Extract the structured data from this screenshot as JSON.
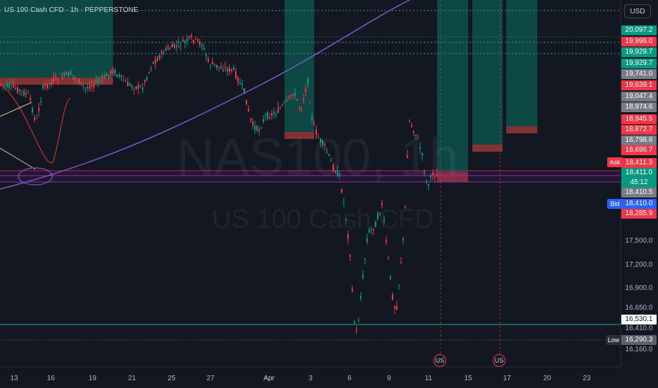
{
  "legend": {
    "text": "US 100 Cash CFD · 1h · PEPPERSTONE"
  },
  "currency": "USD",
  "watermark": {
    "symbol": "NAS100, 1h",
    "name": "US 100 Cash CFD"
  },
  "tags": {
    "ask": "Ask",
    "bid": "Bid",
    "low": "Low"
  },
  "axis_labels": [
    {
      "value": "20,097.2",
      "bg": "#089981",
      "fg": "#ffffff"
    },
    {
      "value": "19,996.0",
      "bg": "#f23645",
      "fg": "#ffffff"
    },
    {
      "value": "19,929.7",
      "bg": "#089981",
      "fg": "#ffffff"
    },
    {
      "value": "19,929.7",
      "bg": "#089981",
      "fg": "#ffffff"
    },
    {
      "value": "19,741.0",
      "bg": "#787b86",
      "fg": "#ffffff"
    },
    {
      "value": "19,639.1",
      "bg": "#f23645",
      "fg": "#ffffff"
    },
    {
      "value": "19,047.4",
      "bg": "#787b86",
      "fg": "#ffffff"
    },
    {
      "value": "18,974.6",
      "bg": "#787b86",
      "fg": "#ffffff"
    },
    {
      "value": "18,945.5",
      "bg": "#f23645",
      "fg": "#ffffff"
    },
    {
      "value": "18,872.7",
      "bg": "#f23645",
      "fg": "#ffffff"
    },
    {
      "value": "18,798.6",
      "bg": "#787b86",
      "fg": "#ffffff"
    },
    {
      "value": "18,696.7",
      "bg": "#f23645",
      "fg": "#ffffff"
    },
    {
      "value": "18,411.3",
      "bg": "#f23645",
      "fg": "#ffffff"
    },
    {
      "value": "18,411.0",
      "bg": "#089981",
      "fg": "#ffffff"
    },
    {
      "value": "45:12",
      "bg": "#089981",
      "fg": "#ffffff"
    },
    {
      "value": "18,410.5",
      "bg": "#787b86",
      "fg": "#ffffff"
    },
    {
      "value": "18,410.0",
      "bg": "#2962ff",
      "fg": "#ffffff"
    },
    {
      "value": "18,285.9",
      "bg": "#f23645",
      "fg": "#ffffff"
    },
    {
      "value": "16,530.1",
      "bg": "#ffffff",
      "fg": "#131722"
    },
    {
      "value": "16,290.3",
      "bg": "#5d606b",
      "fg": "#ffffff"
    }
  ],
  "axis_ticks": [
    "17,500.0",
    "17,200.0",
    "16,900.0",
    "16,650.0",
    "16,410.0",
    "16,160.0"
  ],
  "x_labels": [
    "13",
    "16",
    "19",
    "21",
    "25",
    "27",
    "Apr",
    "3",
    "6",
    "9",
    "11",
    "15",
    "17",
    "20",
    "23"
  ],
  "event_flags": [
    "US",
    "US"
  ]
}
